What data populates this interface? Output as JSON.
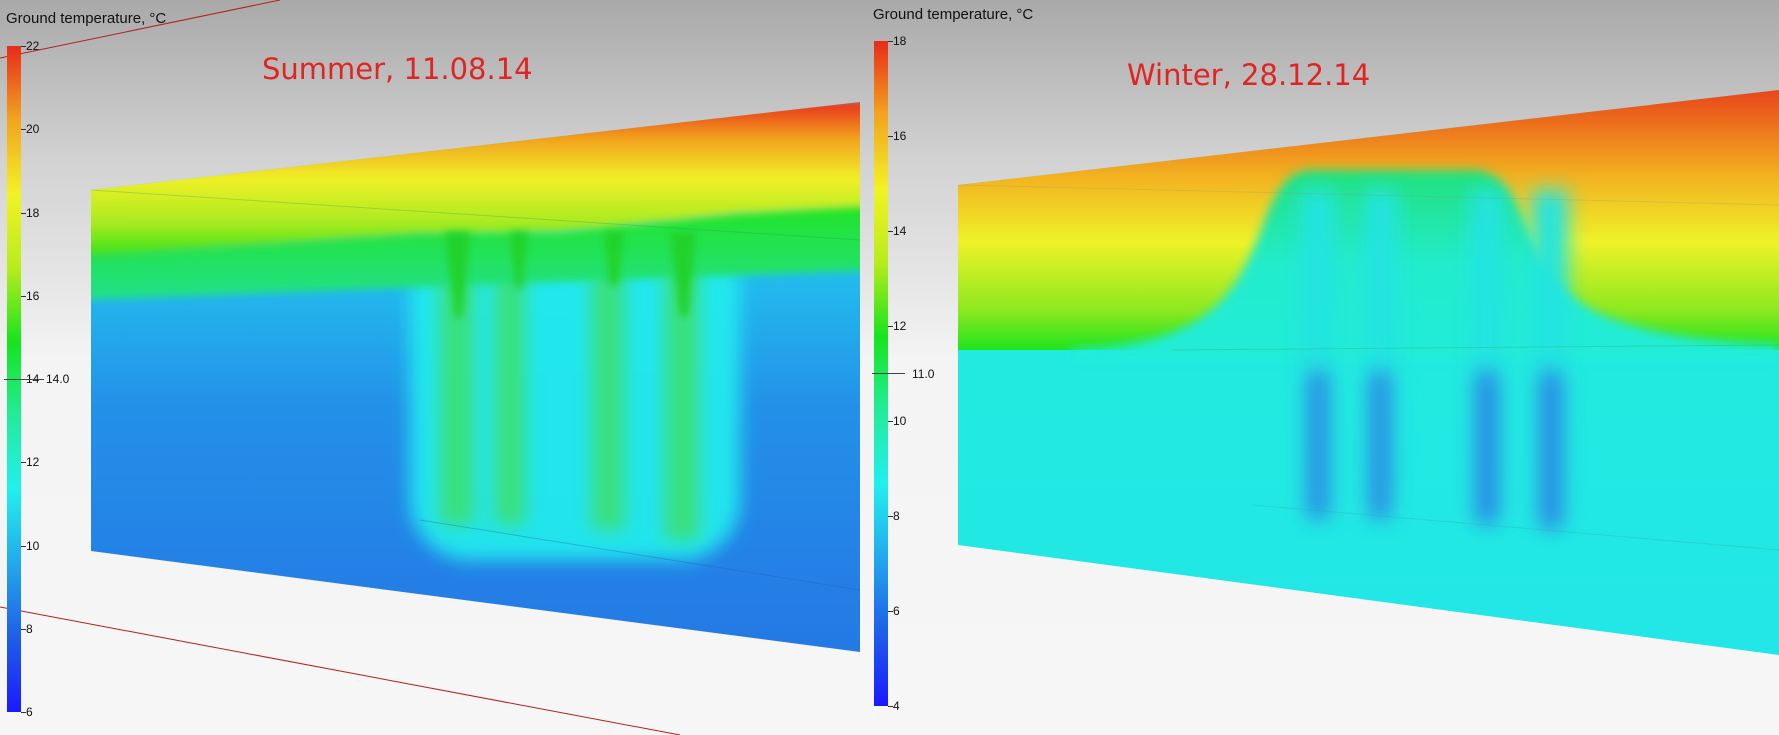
{
  "left": {
    "legend_title": "Ground temperature, °C",
    "season": "Summer, 11.08.14",
    "ticks": [
      "22",
      "20",
      "18",
      "16",
      "14",
      "12",
      "10",
      "8",
      "6"
    ],
    "marker": "14.0",
    "range": [
      6,
      22
    ]
  },
  "right": {
    "legend_title": "Ground temperature, °C",
    "season": "Winter, 28.12.14",
    "ticks": [
      "18",
      "16",
      "14",
      "12",
      "10",
      "8",
      "6",
      "4"
    ],
    "marker": "11.0",
    "range": [
      4,
      18
    ]
  },
  "colormap": [
    "#1a1aff",
    "#1e5fe8",
    "#22a8ec",
    "#21efef",
    "#22ec9a",
    "#16e41c",
    "#b8ec1c",
    "#f2f226",
    "#f2a41e",
    "#e82a1a"
  ]
}
